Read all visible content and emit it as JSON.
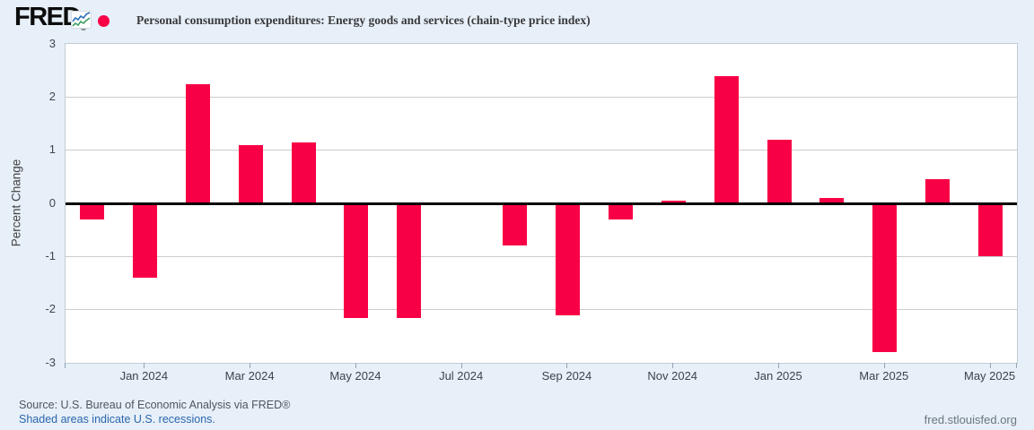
{
  "header": {
    "logo_text": "FRED",
    "registered_mark": "®",
    "legend_title": "Personal consumption expenditures: Energy goods and services (chain-type price index)"
  },
  "icons": {
    "logo_chart_icon": "mini-line-chart",
    "legend_marker": "red-dot"
  },
  "colors": {
    "bar": "#f80045",
    "background": "#e7eff8",
    "zero_line": "#000000",
    "gridline": "#cccccc",
    "link_blue": "#2a66ad"
  },
  "chart_data": {
    "type": "bar",
    "title": "Personal consumption expenditures: Energy goods and services (chain-type price index)",
    "xlabel": "",
    "ylabel": "Percent Change",
    "ylim": [
      -3,
      3
    ],
    "grid": true,
    "legend_position": "top",
    "y_ticks": [
      3,
      2,
      1,
      0,
      -1,
      -2,
      -3
    ],
    "x_tick_labels": [
      "Jan 2024",
      "Mar 2024",
      "May 2024",
      "Jul 2024",
      "Sep 2024",
      "Nov 2024",
      "Jan 2025",
      "Mar 2025",
      "May 2025"
    ],
    "categories": [
      "Dec 2023",
      "Jan 2024",
      "Feb 2024",
      "Mar 2024",
      "Apr 2024",
      "May 2024",
      "Jun 2024",
      "Jul 2024",
      "Aug 2024",
      "Sep 2024",
      "Oct 2024",
      "Nov 2024",
      "Dec 2024",
      "Jan 2025",
      "Feb 2025",
      "Mar 2025",
      "Apr 2025",
      "May 2025"
    ],
    "values": [
      -0.3,
      -1.4,
      2.25,
      1.1,
      1.15,
      -2.15,
      -2.15,
      0,
      -0.8,
      -2.1,
      -0.3,
      0.05,
      2.4,
      1.2,
      0.1,
      -2.8,
      0.45,
      -1.0
    ],
    "series_name": "Personal consumption expenditures: Energy goods and services (chain-type price index)"
  },
  "footer": {
    "source_text": "Source: U.S. Bureau of Economic Analysis via FRED®",
    "recession_note": "Shaded areas indicate U.S. recessions.",
    "site_url": "fred.stlouisfed.org"
  }
}
